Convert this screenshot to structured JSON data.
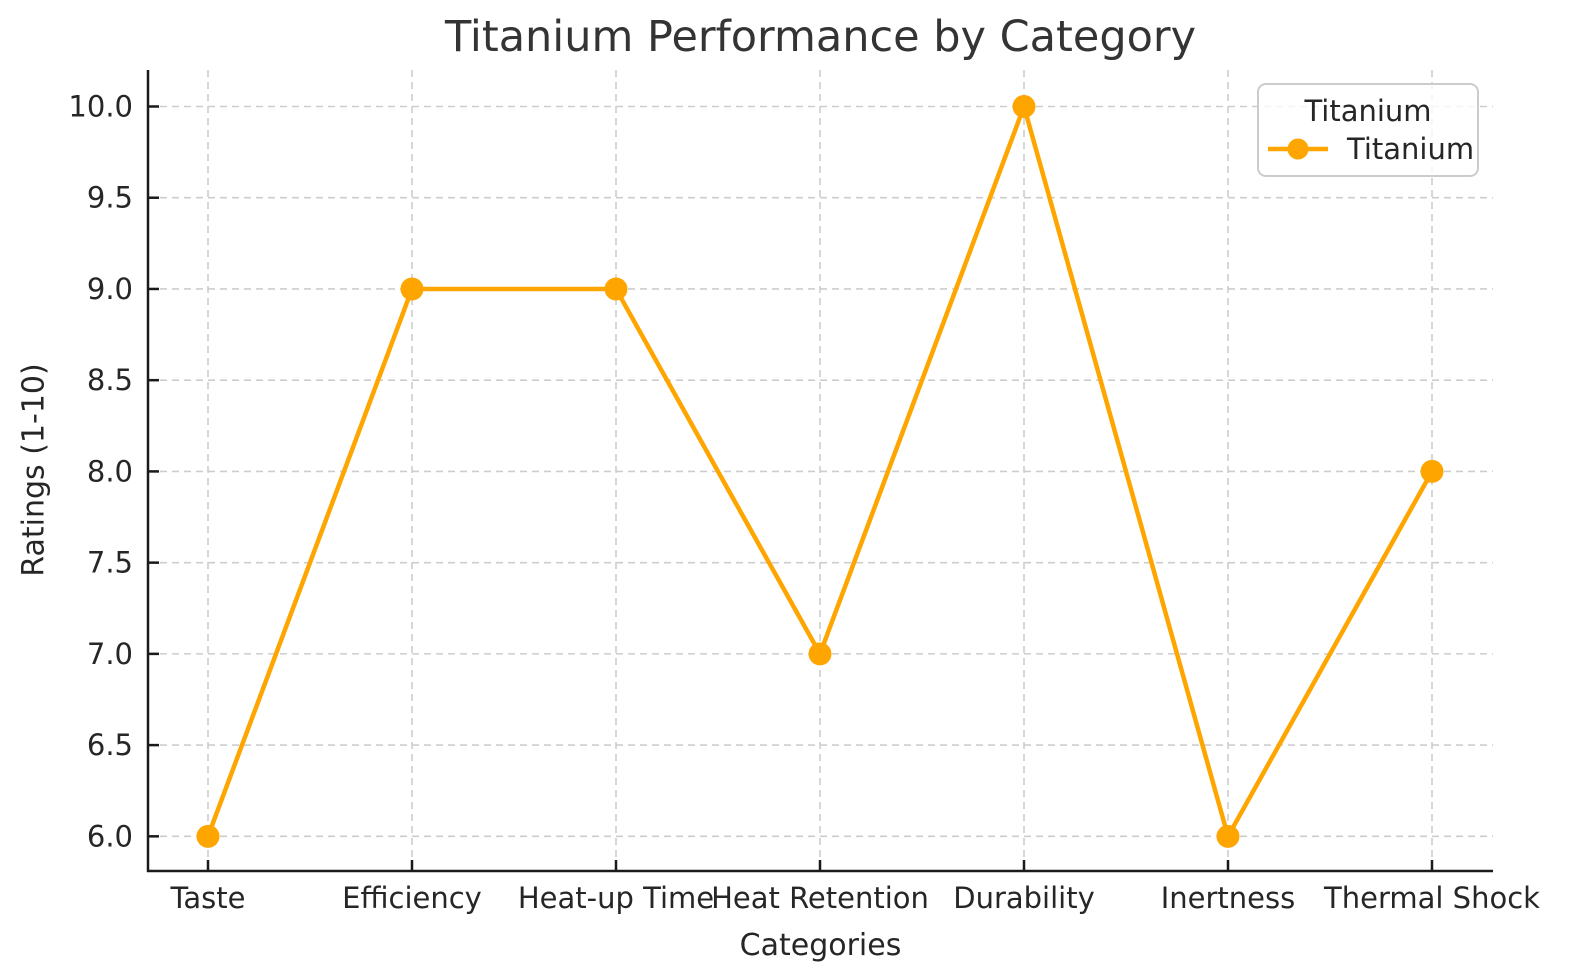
{
  "title": "Titanium Performance by Category",
  "axes": {
    "xlabel": "Categories",
    "ylabel": "Ratings (1-10)"
  },
  "legend": {
    "title": "Titanium",
    "entries": [
      {
        "label": "Titanium",
        "color": "#FFA500",
        "marker": "circle"
      }
    ],
    "position": "upper right"
  },
  "colors": {
    "line": "#FFA500",
    "grid": "#cdcdcd",
    "spine": "#1a1a1a",
    "text": "#262626",
    "background": "#ffffff"
  },
  "chart_data": {
    "type": "line",
    "title": "Titanium Performance by Category",
    "xlabel": "Categories",
    "ylabel": "Ratings (1-10)",
    "categories": [
      "Taste",
      "Efficiency",
      "Heat-up Time",
      "Heat Retention",
      "Durability",
      "Inertness",
      "Thermal Shock"
    ],
    "series": [
      {
        "name": "Titanium",
        "values": [
          6,
          9,
          9,
          7,
          10,
          6,
          8
        ],
        "color": "#FFA500",
        "marker": "o"
      }
    ],
    "yticks": [
      6.0,
      6.5,
      7.0,
      7.5,
      8.0,
      8.5,
      9.0,
      9.5,
      10.0
    ],
    "ytick_labels": [
      "6.0",
      "6.5",
      "7.0",
      "7.5",
      "8.0",
      "8.5",
      "9.0",
      "9.5",
      "10.0"
    ],
    "ylim": [
      5.81,
      10.2
    ],
    "grid": true,
    "grid_style": "dashed",
    "legend_position": "upper right"
  }
}
